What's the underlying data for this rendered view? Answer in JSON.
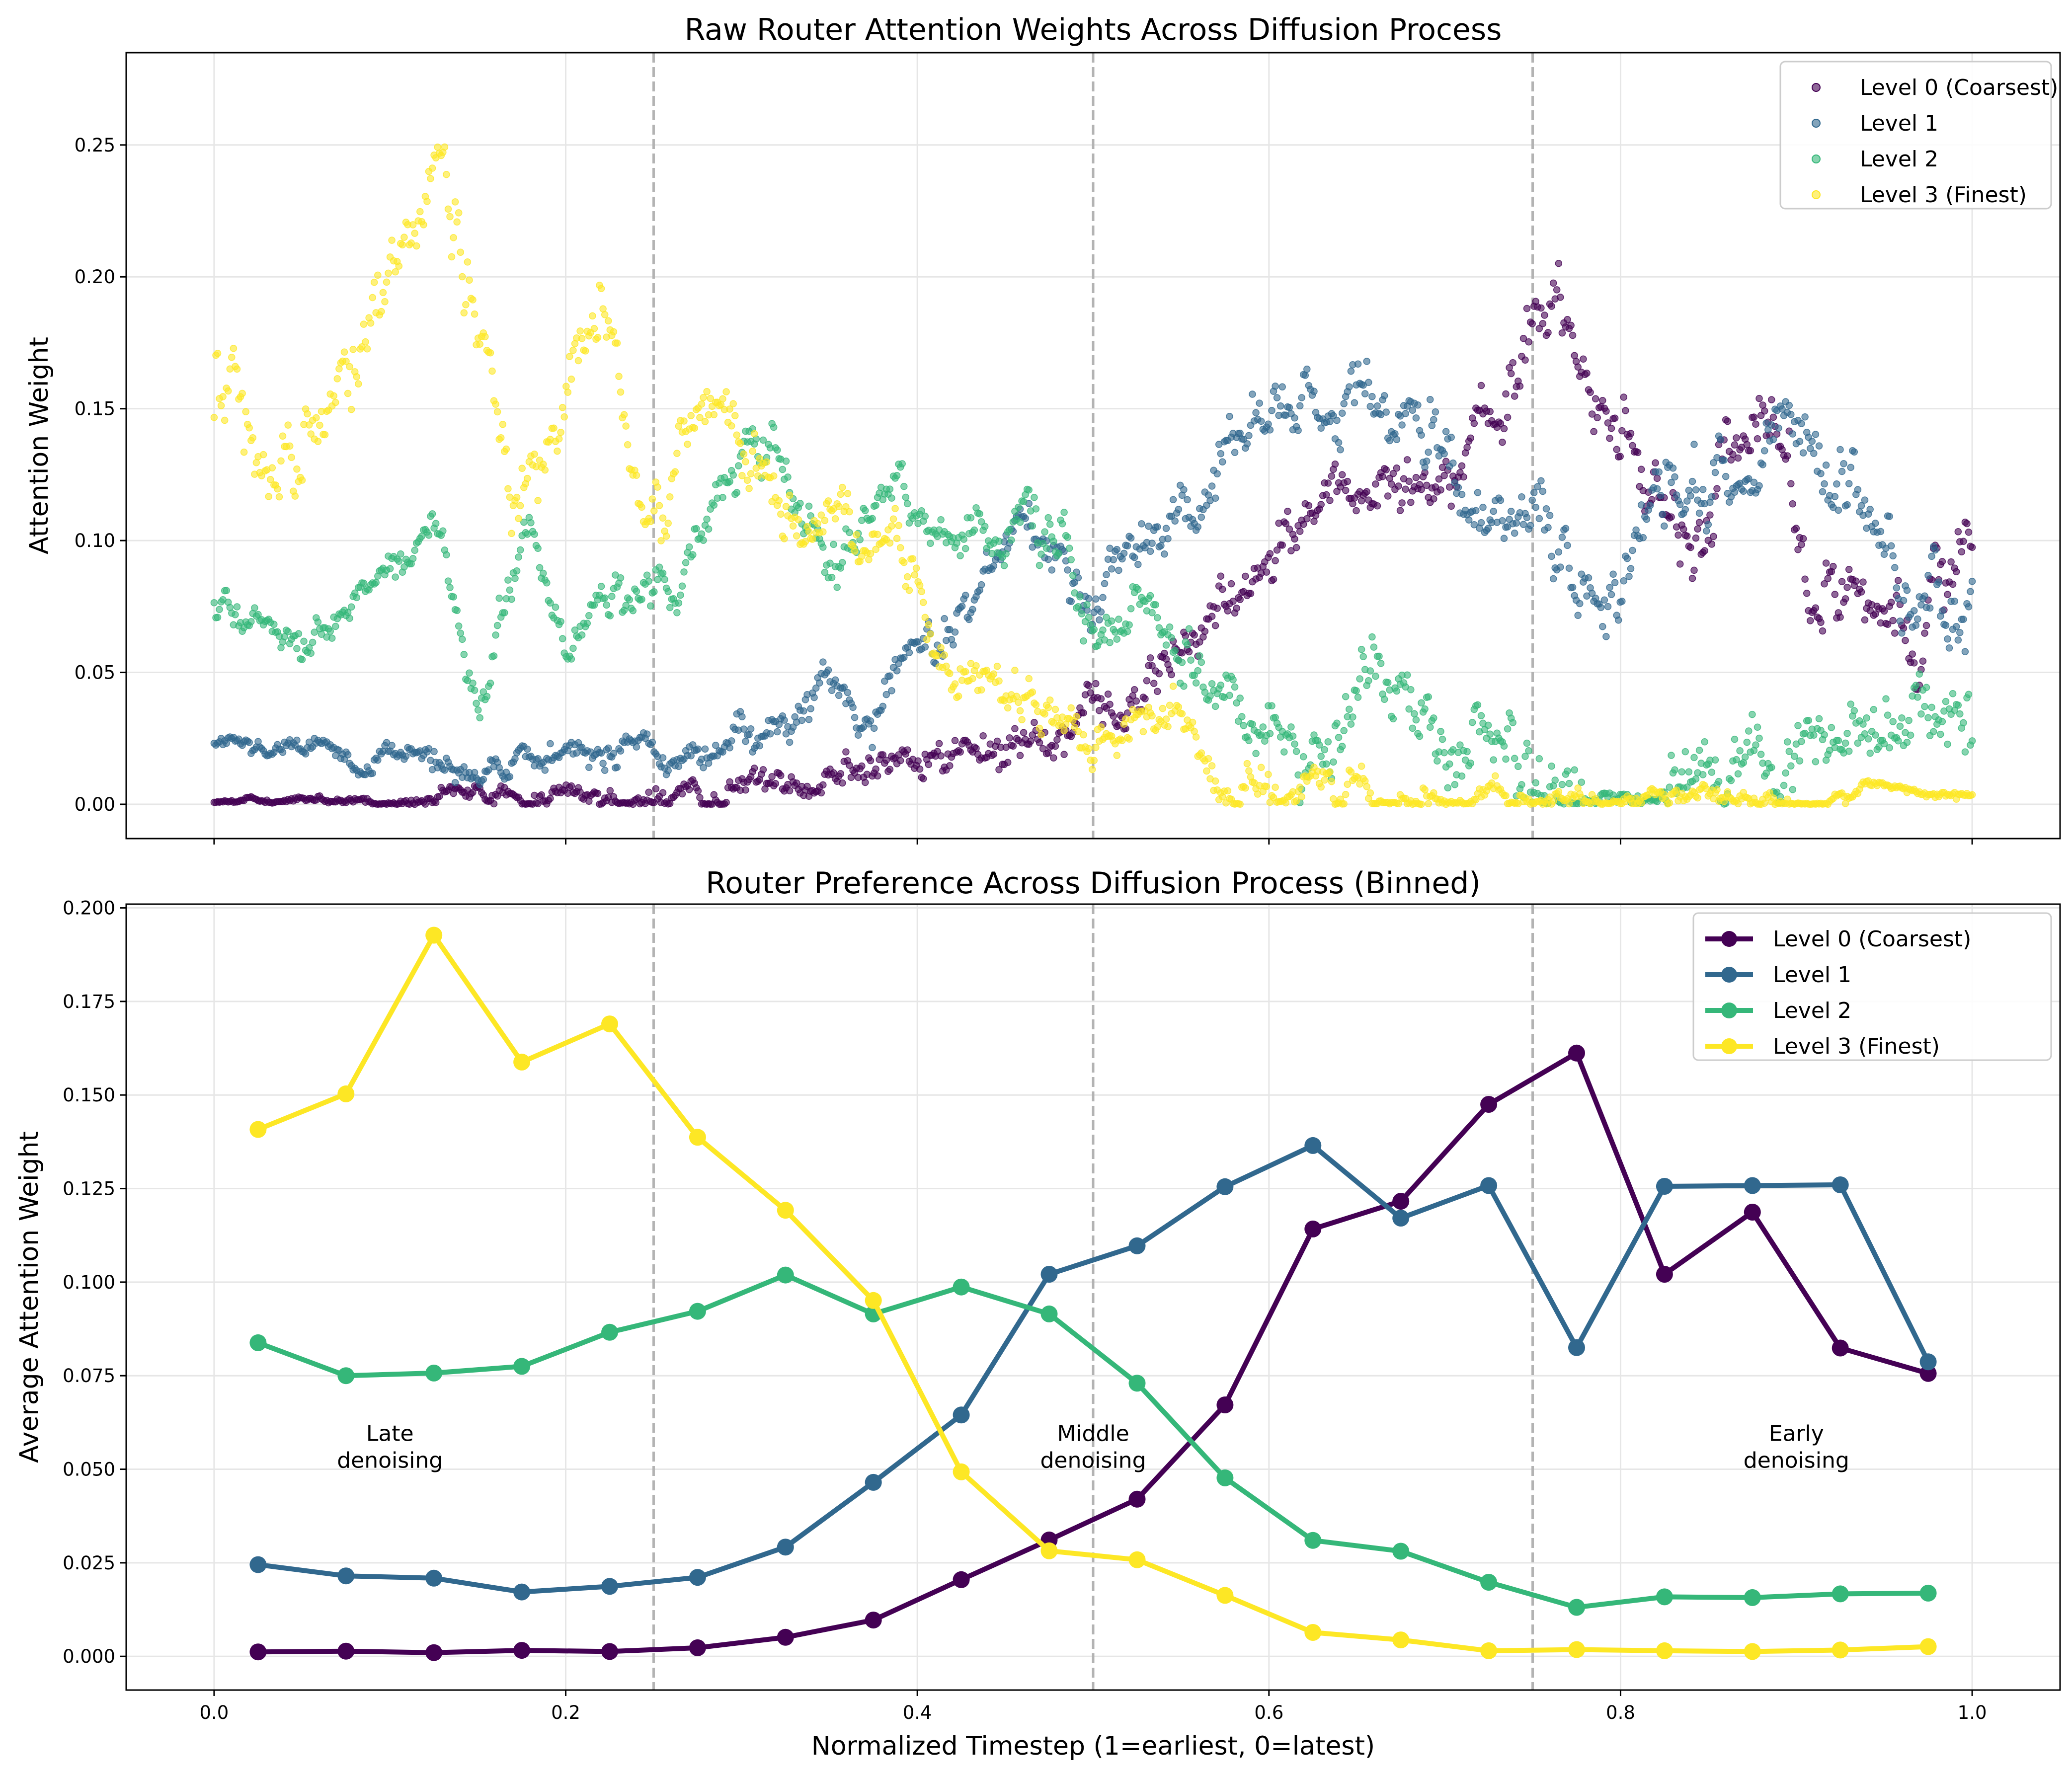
{
  "chart_data": [
    {
      "type": "scatter",
      "title": "Raw Router Attention Weights Across Diffusion Process",
      "xlabel": "",
      "ylabel": "Attention Weight",
      "xlim": [
        -0.05,
        1.05
      ],
      "ylim": [
        -0.013,
        0.285
      ],
      "xticks": [
        0.0,
        0.2,
        0.4,
        0.6,
        0.8,
        1.0
      ],
      "xtick_labels": [
        "",
        "",
        "",
        "",
        "",
        ""
      ],
      "yticks": [
        0.0,
        0.05,
        0.1,
        0.15,
        0.2,
        0.25
      ],
      "ytick_labels": [
        "0.00",
        "0.05",
        "0.10",
        "0.15",
        "0.20",
        "0.25"
      ],
      "grid": true,
      "vlines": [
        0.25,
        0.5,
        0.75
      ],
      "legend_position": "top-right",
      "series": [
        {
          "name": "Level 0 (Coarsest)",
          "color": "#440154",
          "knots_x": [
            0,
            0.1,
            0.2,
            0.25,
            0.3,
            0.35,
            0.38,
            0.41,
            0.45,
            0.48,
            0.5,
            0.53,
            0.56,
            0.59,
            0.62,
            0.65,
            0.7,
            0.73,
            0.76,
            0.78,
            0.8,
            0.83,
            0.88,
            0.91,
            0.94,
            0.97,
            1.0
          ],
          "knots_y": [
            0.001,
            0.001,
            0.002,
            0.001,
            0.003,
            0.007,
            0.01,
            0.02,
            0.023,
            0.03,
            0.04,
            0.038,
            0.055,
            0.075,
            0.12,
            0.11,
            0.135,
            0.165,
            0.18,
            0.15,
            0.125,
            0.095,
            0.14,
            0.08,
            0.07,
            0.06,
            0.1
          ],
          "noise": [
            0.0004,
            0.012
          ]
        },
        {
          "name": "Level 1",
          "color": "#31688e",
          "knots_x": [
            0,
            0.05,
            0.1,
            0.15,
            0.2,
            0.25,
            0.3,
            0.33,
            0.36,
            0.4,
            0.43,
            0.46,
            0.5,
            0.55,
            0.6,
            0.65,
            0.7,
            0.72,
            0.75,
            0.78,
            0.8,
            0.82,
            0.86,
            0.9,
            0.93,
            0.97,
            1.0
          ],
          "knots_y": [
            0.025,
            0.023,
            0.018,
            0.016,
            0.02,
            0.024,
            0.021,
            0.03,
            0.042,
            0.055,
            0.07,
            0.12,
            0.08,
            0.125,
            0.14,
            0.15,
            0.13,
            0.12,
            0.1,
            0.078,
            0.075,
            0.13,
            0.12,
            0.14,
            0.11,
            0.08,
            0.085
          ],
          "noise": [
            0.002,
            0.013
          ]
        },
        {
          "name": "Level 2",
          "color": "#35b779",
          "knots_x": [
            0,
            0.05,
            0.1,
            0.13,
            0.15,
            0.18,
            0.2,
            0.25,
            0.28,
            0.31,
            0.35,
            0.39,
            0.42,
            0.46,
            0.5,
            0.53,
            0.56,
            0.6,
            0.63,
            0.67,
            0.7,
            0.75,
            0.8,
            0.85,
            0.9,
            0.95,
            1.0
          ],
          "knots_y": [
            0.075,
            0.07,
            0.09,
            0.105,
            0.045,
            0.11,
            0.06,
            0.09,
            0.115,
            0.14,
            0.09,
            0.12,
            0.09,
            0.105,
            0.085,
            0.08,
            0.055,
            0.035,
            0.03,
            0.035,
            0.025,
            0.02,
            0.014,
            0.016,
            0.02,
            0.016,
            0.018
          ],
          "noise": [
            0.004,
            0.012
          ]
        },
        {
          "name": "Level 3 (Finest)",
          "color": "#fde725",
          "knots_x": [
            0,
            0.03,
            0.06,
            0.1,
            0.13,
            0.15,
            0.17,
            0.2,
            0.22,
            0.25,
            0.28,
            0.31,
            0.34,
            0.37,
            0.4,
            0.44,
            0.48,
            0.52,
            0.56,
            0.6,
            0.65,
            0.7,
            0.75,
            0.8,
            0.9,
            1.0
          ],
          "knots_y": [
            0.15,
            0.14,
            0.15,
            0.19,
            0.24,
            0.19,
            0.13,
            0.17,
            0.2,
            0.1,
            0.16,
            0.12,
            0.11,
            0.1,
            0.07,
            0.045,
            0.028,
            0.03,
            0.02,
            0.01,
            0.006,
            0.004,
            0.002,
            0.002,
            0.002,
            0.003
          ],
          "noise": [
            0.012,
            0.001
          ]
        }
      ]
    },
    {
      "type": "line",
      "title": "Router Preference Across Diffusion Process (Binned)",
      "xlabel": "Normalized Timestep (1=earliest, 0=latest)",
      "ylabel": "Average Attention Weight",
      "xlim": [
        -0.05,
        1.05
      ],
      "ylim": [
        -0.009,
        0.201
      ],
      "xticks": [
        0.0,
        0.2,
        0.4,
        0.6,
        0.8,
        1.0
      ],
      "xtick_labels": [
        "0.0",
        "0.2",
        "0.4",
        "0.6",
        "0.8",
        "1.0"
      ],
      "yticks": [
        0.0,
        0.025,
        0.05,
        0.075,
        0.1,
        0.125,
        0.15,
        0.175,
        0.2
      ],
      "ytick_labels": [
        "0.000",
        "0.025",
        "0.050",
        "0.075",
        "0.100",
        "0.125",
        "0.150",
        "0.175",
        "0.200"
      ],
      "grid": true,
      "vlines": [
        0.25,
        0.5,
        0.75
      ],
      "legend_position": "top-right",
      "x": [
        0.025,
        0.075,
        0.125,
        0.175,
        0.225,
        0.275,
        0.325,
        0.375,
        0.425,
        0.475,
        0.525,
        0.575,
        0.625,
        0.675,
        0.725,
        0.775,
        0.825,
        0.875,
        0.925,
        0.975
      ],
      "series": [
        {
          "name": "Level 0 (Coarsest)",
          "color": "#440154",
          "values": [
            0.0012,
            0.0014,
            0.001,
            0.0016,
            0.0013,
            0.0023,
            0.0051,
            0.0097,
            0.0205,
            0.0311,
            0.042,
            0.0672,
            0.1142,
            0.1216,
            0.1475,
            0.1612,
            0.1021,
            0.1187,
            0.0824,
            0.0756
          ]
        },
        {
          "name": "Level 1",
          "color": "#31688e",
          "values": [
            0.0245,
            0.0215,
            0.0209,
            0.0172,
            0.0187,
            0.0211,
            0.0292,
            0.0465,
            0.0645,
            0.1021,
            0.1097,
            0.1255,
            0.1365,
            0.1171,
            0.1258,
            0.0825,
            0.1256,
            0.1258,
            0.126,
            0.0787
          ]
        },
        {
          "name": "Level 2",
          "color": "#35b779",
          "values": [
            0.0838,
            0.075,
            0.0757,
            0.0775,
            0.0866,
            0.0922,
            0.1019,
            0.0915,
            0.0987,
            0.0915,
            0.073,
            0.0477,
            0.031,
            0.0281,
            0.0198,
            0.0131,
            0.0159,
            0.0157,
            0.0167,
            0.0169
          ]
        },
        {
          "name": "Level 3 (Finest)",
          "color": "#fde725",
          "values": [
            0.1408,
            0.1503,
            0.1927,
            0.1588,
            0.169,
            0.1387,
            0.1192,
            0.0951,
            0.0493,
            0.0282,
            0.0258,
            0.0163,
            0.0064,
            0.0044,
            0.0015,
            0.0018,
            0.0015,
            0.0013,
            0.0017,
            0.0026
          ]
        }
      ],
      "annotations": [
        {
          "x": 0.1,
          "y": 0.052,
          "lines": [
            "Late",
            "denoising"
          ]
        },
        {
          "x": 0.5,
          "y": 0.052,
          "lines": [
            "Middle",
            "denoising"
          ]
        },
        {
          "x": 0.9,
          "y": 0.052,
          "lines": [
            "Early",
            "denoising"
          ]
        }
      ]
    }
  ]
}
